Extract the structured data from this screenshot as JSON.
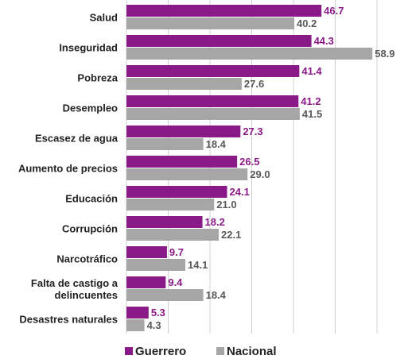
{
  "chart_data": {
    "type": "bar",
    "orientation": "horizontal",
    "categories": [
      "Salud",
      "Inseguridad",
      "Pobreza",
      "Desempleo",
      "Escasez de agua",
      "Aumento de precios",
      "Educación",
      "Corrupción",
      "Narcotráfico",
      "Falta de castigo a delincuentes",
      "Desastres naturales"
    ],
    "series": [
      {
        "name": "Guerrero",
        "color": "#8b1a89",
        "values": [
          46.7,
          44.3,
          41.4,
          41.2,
          27.3,
          26.5,
          24.1,
          18.2,
          9.7,
          9.4,
          5.3
        ],
        "value_labels": [
          "46.7",
          "44.3",
          "41.4",
          "41.2",
          "27.3",
          "26.5",
          "24.1",
          "18.2",
          "9.7",
          "9.4",
          "5.3"
        ]
      },
      {
        "name": "Nacional",
        "color": "#a6a6a6",
        "values": [
          40.2,
          58.9,
          27.6,
          41.5,
          18.4,
          29.0,
          21.0,
          22.1,
          14.1,
          18.4,
          4.3
        ],
        "value_labels": [
          "40.2",
          "58.9",
          "27.6",
          "41.5",
          "18.4",
          "29.0",
          "21.0",
          "22.1",
          "14.1",
          "18.4",
          "4.3"
        ]
      }
    ],
    "xlim": [
      0,
      60
    ],
    "xticks": [
      0,
      10,
      20,
      30,
      40,
      50,
      60
    ],
    "grid": true,
    "legend": "bottom"
  }
}
